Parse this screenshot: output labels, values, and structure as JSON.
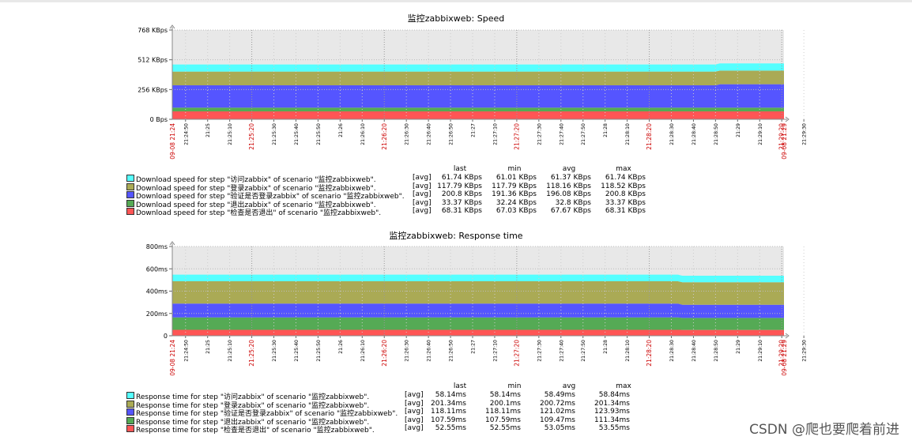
{
  "chart_data": [
    {
      "type": "area",
      "stacked": true,
      "title": "监控zabbixweb: Speed",
      "y_ticks": [
        "768 KBps",
        "512 KBps",
        "256 KBps",
        "0 Bps"
      ],
      "y_tick_values": [
        768,
        512,
        256,
        0
      ],
      "ylim": [
        0,
        768
      ],
      "y_unit": "KBps",
      "x_start_label": "09-08 21:24",
      "x_end_label": "09-08 21:29",
      "x_tick_labels": [
        "21:24:50",
        "21:25",
        "21:25:10",
        "21:25:20",
        "21:25:30",
        "21:25:40",
        "21:25:50",
        "21:26",
        "21:26:10",
        "21:26:20",
        "21:26:30",
        "21:26:40",
        "21:26:50",
        "21:27",
        "21:27:10",
        "21:27:20",
        "21:27:30",
        "21:27:40",
        "21:27:50",
        "21:28",
        "21:28:10",
        "21:28:20",
        "21:28:30",
        "21:28:40",
        "21:28:50",
        "21:29",
        "21:29:10",
        "21:29:20",
        "21:29:30"
      ],
      "x_range_seconds": [
        24,
        301
      ],
      "legend_columns": [
        "last",
        "min",
        "avg",
        "max"
      ],
      "series": [
        {
          "name": "Download speed for step \"访问zabbix\" of scenario \"监控zabbixweb\".",
          "color": "#55ffff",
          "func": "[avg]",
          "last": "61.74 KBps",
          "min": "61.01 KBps",
          "avg": "61.37 KBps",
          "max": "61.74 KBps",
          "x": [
            24,
            270,
            272,
            301
          ],
          "values": [
            61.37,
            61.37,
            61.74,
            61.74
          ]
        },
        {
          "name": "Download speed for step \"登录zabbix\" of scenario \"监控zabbixweb\".",
          "color": "#aaaa55",
          "func": "[avg]",
          "last": "117.79 KBps",
          "min": "117.79 KBps",
          "avg": "118.16 KBps",
          "max": "118.52 KBps",
          "x": [
            24,
            270,
            272,
            301
          ],
          "values": [
            118.52,
            118.52,
            117.79,
            117.79
          ]
        },
        {
          "name": "Download speed for step \"验证是否登录zabbix\" of scenario \"监控zabbixweb\".",
          "color": "#5555ff",
          "func": "[avg]",
          "last": "200.8 KBps",
          "min": "191.36 KBps",
          "avg": "196.08 KBps",
          "max": "200.8 KBps",
          "x": [
            24,
            270,
            272,
            301
          ],
          "values": [
            191.36,
            191.36,
            200.8,
            200.8
          ]
        },
        {
          "name": "Download speed for step \"退出zabbix\" of scenario \"监控zabbixweb\".",
          "color": "#55aa55",
          "func": "[avg]",
          "last": "33.37 KBps",
          "min": "32.24 KBps",
          "avg": "32.8 KBps",
          "max": "33.37 KBps",
          "x": [
            24,
            301
          ],
          "values": [
            32.8,
            32.8
          ]
        },
        {
          "name": "Download speed for step \"检查是否退出\" of scenario \"监控zabbixweb\".",
          "color": "#ff5555",
          "func": "[avg]",
          "last": "68.31 KBps",
          "min": "67.03 KBps",
          "avg": "67.67 KBps",
          "max": "68.31 KBps",
          "x": [
            24,
            301
          ],
          "values": [
            67.67,
            67.67
          ]
        }
      ]
    },
    {
      "type": "area",
      "stacked": true,
      "title": "监控zabbixweb: Response time",
      "y_ticks": [
        "800ms",
        "600ms",
        "400ms",
        "200ms",
        "0"
      ],
      "y_tick_values": [
        800,
        600,
        400,
        200,
        0
      ],
      "ylim": [
        0,
        800
      ],
      "y_unit": "ms",
      "x_start_label": "09-08 21:24",
      "x_end_label": "09-08 21:29",
      "x_tick_labels": [
        "21:24:50",
        "21:25",
        "21:25:10",
        "21:25:20",
        "21:25:30",
        "21:25:40",
        "21:25:50",
        "21:26",
        "21:26:10",
        "21:26:20",
        "21:26:30",
        "21:26:40",
        "21:26:50",
        "21:27",
        "21:27:10",
        "21:27:20",
        "21:27:30",
        "21:27:40",
        "21:27:50",
        "21:28",
        "21:28:10",
        "21:28:20",
        "21:28:30",
        "21:28:40",
        "21:28:50",
        "21:29",
        "21:29:10",
        "21:29:20",
        "21:29:30"
      ],
      "x_range_seconds": [
        24,
        301
      ],
      "legend_columns": [
        "last",
        "min",
        "avg",
        "max"
      ],
      "series": [
        {
          "name": "Response time for step \"访问zabbix\" of scenario \"监控zabbixweb\".",
          "color": "#55ffff",
          "func": "[avg]",
          "last": "58.14ms",
          "min": "58.14ms",
          "avg": "58.49ms",
          "max": "58.84ms",
          "x": [
            24,
            253,
            255,
            301
          ],
          "values": [
            58.84,
            58.84,
            58.14,
            58.14
          ]
        },
        {
          "name": "Response time for step \"登录zabbix\" of scenario \"监控zabbixweb\".",
          "color": "#aaaa55",
          "func": "[avg]",
          "last": "201.34ms",
          "min": "200.1ms",
          "avg": "200.72ms",
          "max": "201.34ms",
          "x": [
            24,
            253,
            255,
            301
          ],
          "values": [
            200.1,
            200.1,
            201.34,
            201.34
          ]
        },
        {
          "name": "Response time for step \"验证是否登录zabbix\" of scenario \"监控zabbixweb\".",
          "color": "#5555ff",
          "func": "[avg]",
          "last": "118.11ms",
          "min": "118.11ms",
          "avg": "121.02ms",
          "max": "123.93ms",
          "x": [
            24,
            253,
            255,
            301
          ],
          "values": [
            123.93,
            123.93,
            118.11,
            118.11
          ]
        },
        {
          "name": "Response time for step \"退出zabbix\" of scenario \"监控zabbixweb\".",
          "color": "#55aa55",
          "func": "[avg]",
          "last": "107.59ms",
          "min": "107.59ms",
          "avg": "109.47ms",
          "max": "111.34ms",
          "x": [
            24,
            253,
            255,
            301
          ],
          "values": [
            111.34,
            111.34,
            107.59,
            107.59
          ]
        },
        {
          "name": "Response time for step \"检查是否退出\" of scenario \"监控zabbixweb\".",
          "color": "#ff5555",
          "func": "[avg]",
          "last": "52.55ms",
          "min": "52.55ms",
          "avg": "53.05ms",
          "max": "53.55ms",
          "x": [
            24,
            253,
            255,
            301
          ],
          "values": [
            53.55,
            53.55,
            52.55,
            52.55
          ]
        }
      ]
    }
  ],
  "watermark": "CSDN @爬也要爬着前进"
}
